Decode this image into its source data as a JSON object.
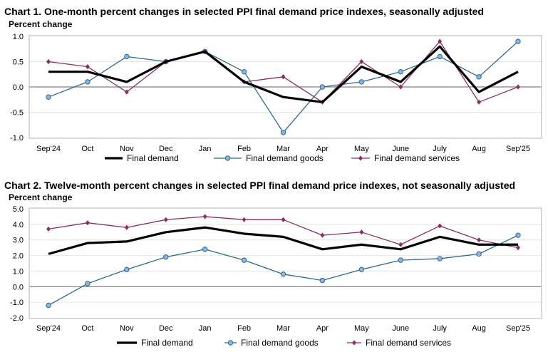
{
  "chart_data": [
    {
      "type": "line",
      "title": "Chart 1. One-month percent changes in selected PPI final demand price indexes, seasonally adjusted",
      "ylabel": "Percent change",
      "xlabel": "",
      "categories": [
        "Sep'24",
        "Oct",
        "Nov",
        "Dec",
        "Jan",
        "Feb",
        "Mar",
        "Apr",
        "May",
        "June",
        "July",
        "Aug",
        "Sep'25"
      ],
      "ylim": [
        -1.0,
        1.0
      ],
      "yticks": [
        "1.0",
        "0.5",
        "0.0",
        "-0.5",
        "-1.0"
      ],
      "ytick_values": [
        1.0,
        0.5,
        0.0,
        -0.5,
        -1.0
      ],
      "grid": true,
      "legend": "bottom",
      "series": [
        {
          "name": "Final demand",
          "color": "#000000",
          "marker": "none",
          "values": [
            0.3,
            0.3,
            0.1,
            0.5,
            0.7,
            0.1,
            -0.2,
            -0.3,
            0.4,
            0.1,
            0.8,
            -0.1,
            0.3
          ]
        },
        {
          "name": "Final demand goods",
          "color": "#2e6b8a",
          "marker": "circle",
          "marker_fill": "#8db4e2",
          "values": [
            -0.2,
            0.1,
            0.6,
            0.5,
            0.7,
            0.3,
            -0.9,
            0.0,
            0.1,
            0.3,
            0.6,
            0.2,
            0.9
          ]
        },
        {
          "name": "Final demand services",
          "color": "#8b2e62",
          "marker": "diamond",
          "marker_fill": "#8b2e62",
          "values": [
            0.5,
            0.4,
            -0.1,
            0.5,
            0.7,
            0.1,
            0.2,
            -0.3,
            0.5,
            0.0,
            0.9,
            -0.3,
            0.0
          ]
        }
      ]
    },
    {
      "type": "line",
      "title": "Chart 2. Twelve-month percent changes in selected PPI final demand price indexes, not seasonally adjusted",
      "ylabel": "Percent change",
      "xlabel": "",
      "categories": [
        "Sep'24",
        "Oct",
        "Nov",
        "Dec",
        "Jan",
        "Feb",
        "Mar",
        "Apr",
        "May",
        "June",
        "July",
        "Aug",
        "Sep'25"
      ],
      "ylim": [
        -2.0,
        5.0
      ],
      "yticks": [
        "5.0",
        "4.0",
        "3.0",
        "2.0",
        "1.0",
        "0.0",
        "-1.0",
        "-2.0"
      ],
      "ytick_values": [
        5,
        4,
        3,
        2,
        1,
        0,
        -1,
        -2
      ],
      "grid": true,
      "legend": "bottom",
      "series": [
        {
          "name": "Final demand",
          "color": "#000000",
          "marker": "none",
          "values": [
            2.1,
            2.8,
            2.9,
            3.5,
            3.8,
            3.4,
            3.2,
            2.4,
            2.7,
            2.4,
            3.2,
            2.7,
            2.7
          ]
        },
        {
          "name": "Final demand goods",
          "color": "#2e6b8a",
          "marker": "circle",
          "marker_fill": "#8db4e2",
          "values": [
            -1.2,
            0.2,
            1.1,
            1.9,
            2.4,
            1.7,
            0.8,
            0.4,
            1.1,
            1.7,
            1.8,
            2.1,
            3.3
          ]
        },
        {
          "name": "Final demand services",
          "color": "#8b2e62",
          "marker": "diamond",
          "marker_fill": "#8b2e62",
          "values": [
            3.7,
            4.1,
            3.8,
            4.3,
            4.5,
            4.3,
            4.3,
            3.3,
            3.5,
            2.7,
            3.9,
            3.0,
            2.5
          ]
        }
      ]
    }
  ]
}
